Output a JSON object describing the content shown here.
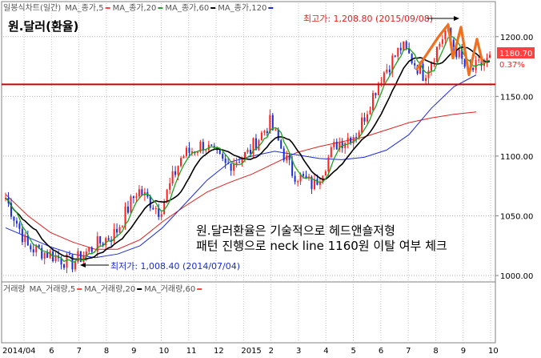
{
  "header": {
    "items": [
      {
        "label": "일봉식차트(일간)",
        "color": "#555555",
        "marker": false
      },
      {
        "label": "MA_종가,5",
        "color": "#ff4040",
        "marker": true
      },
      {
        "label": "MA_종가,20",
        "color": "#20a020",
        "marker": true
      },
      {
        "label": "MA_종가,60",
        "color": "#000000",
        "marker": true
      },
      {
        "label": "MA_종가,120",
        "color": "#1a2bd9",
        "marker": true
      }
    ]
  },
  "volume_header": {
    "items": [
      {
        "label": "거래량",
        "color": "#555555",
        "marker": false
      },
      {
        "label": "MA_거래량,5",
        "color": "#ff4040",
        "marker": true
      },
      {
        "label": "MA_거래량,20",
        "color": "#000000",
        "marker": true
      },
      {
        "label": "MA_거래량,60",
        "color": "#ff4040",
        "marker": true
      }
    ]
  },
  "title": "원.달러(환율)",
  "annotations": {
    "high": "최고가: 1,208.80 (2015/09/08)",
    "low": "최저가: 1,008.40 (2014/07/04)",
    "commentary_line1": "원.달러환율은 기술적으로 헤드앤숄저형",
    "commentary_line2": "패턴 진행으로 neck line 1160원 이탈 여부 체크"
  },
  "price_tag": {
    "value": "1180.70",
    "change": "0.37%"
  },
  "colors": {
    "up_candle": "#ff2020",
    "down_candle": "#1a2bd9",
    "ma5": "#20a020",
    "ma20": "#000000",
    "ma60": "#1a2bd9",
    "ma120": "#e02020",
    "neckline": "#cc0000",
    "pattern": "#f07020",
    "annotation_high": "#e02020",
    "annotation_low": "#1a2bd9",
    "price_tag_bg": "#ff4040"
  },
  "chart_data": {
    "type": "candlestick",
    "y_axis": {
      "ticks": [
        1000,
        1050,
        1100,
        1150,
        1200
      ],
      "tick_labels": [
        "1000.00",
        "1050.00",
        "1100.00",
        "1150.00",
        "1200.00"
      ],
      "range": [
        996,
        1228
      ]
    },
    "x_axis": {
      "ticks": [
        "2014/04",
        "6",
        "7",
        "8",
        "9",
        "10",
        "11",
        "12",
        "2015",
        "2",
        "3",
        "4",
        "5",
        "6",
        "7",
        "8",
        "9",
        "10"
      ]
    },
    "close_series": [
      {
        "date": "2014-04",
        "value": 1065
      },
      {
        "date": "2014-05",
        "value": 1024
      },
      {
        "date": "2014-06",
        "value": 1018
      },
      {
        "date": "2014-07",
        "value": 1010
      },
      {
        "date": "2014-08",
        "value": 1024
      },
      {
        "date": "2014-09",
        "value": 1036
      },
      {
        "date": "2014-10",
        "value": 1072
      },
      {
        "date": "2014-10b",
        "value": 1054
      },
      {
        "date": "2014-11",
        "value": 1100
      },
      {
        "date": "2014-12",
        "value": 1110
      },
      {
        "date": "2015-01",
        "value": 1092
      },
      {
        "date": "2015-02",
        "value": 1102
      },
      {
        "date": "2015-03",
        "value": 1128
      },
      {
        "date": "2015-04",
        "value": 1087
      },
      {
        "date": "2015-05",
        "value": 1075
      },
      {
        "date": "2015-05b",
        "value": 1110
      },
      {
        "date": "2015-06",
        "value": 1120
      },
      {
        "date": "2015-07",
        "value": 1165
      },
      {
        "date": "2015-08",
        "value": 1192
      },
      {
        "date": "2015-08b",
        "value": 1168
      },
      {
        "date": "2015-09",
        "value": 1205
      },
      {
        "date": "2015-09b",
        "value": 1170
      },
      {
        "date": "2015-10",
        "value": 1180.7
      }
    ],
    "ma120_series": [
      1068,
      1050,
      1036,
      1028,
      1022,
      1022,
      1030,
      1045,
      1058,
      1070,
      1078,
      1085,
      1094,
      1103,
      1108,
      1112,
      1116,
      1122,
      1128,
      1132,
      1135,
      1137
    ],
    "ma60_series": [
      1040,
      1032,
      1024,
      1018,
      1015,
      1018,
      1025,
      1040,
      1060,
      1080,
      1095,
      1100,
      1104,
      1101,
      1098,
      1097,
      1099,
      1105,
      1118,
      1140,
      1158,
      1168
    ],
    "high": {
      "value": 1208.8,
      "date": "2015/09/08"
    },
    "low": {
      "value": 1008.4,
      "date": "2014/07/04"
    },
    "neckline": 1160,
    "head_and_shoulders": [
      [
        1172,
        "2015-07"
      ],
      [
        1200,
        "2015-08"
      ],
      [
        1180,
        "2015-08"
      ],
      [
        1208,
        "2015-09"
      ],
      [
        1172,
        "2015-09"
      ],
      [
        1198,
        "2015-09"
      ],
      [
        1185,
        "2015-10"
      ]
    ],
    "last_close": 1180.7,
    "last_change_pct": 0.37
  }
}
